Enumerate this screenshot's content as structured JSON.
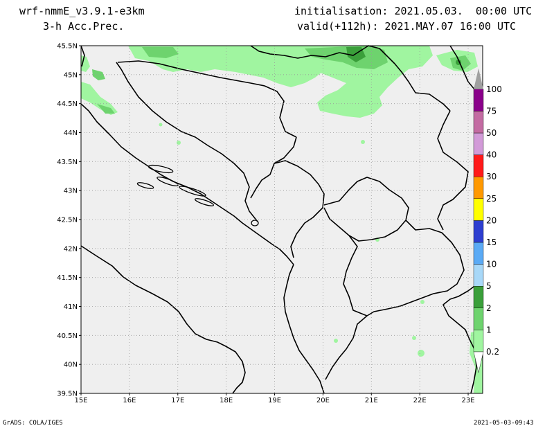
{
  "header": {
    "model": "wrf-nmmE_v3.9.1-e3km",
    "product": "3-h Acc.Prec.",
    "initialisation": "initialisation: 2021.05.03.  00:00 UTC",
    "valid": "valid(+112h): 2021.MAY.07 16:00 UTC"
  },
  "map": {
    "lat_labels": [
      "45.5N",
      "45N",
      "44.5N",
      "44N",
      "43.5N",
      "43N",
      "42.5N",
      "42N",
      "41.5N",
      "41N",
      "40.5N",
      "40N",
      "39.5N"
    ],
    "lon_labels": [
      "15E",
      "16E",
      "17E",
      "18E",
      "19E",
      "20E",
      "21E",
      "22E",
      "23E"
    ],
    "lat_range": [
      39.5,
      45.5
    ],
    "lon_range": [
      15,
      23.3
    ],
    "background_color": "#efefef",
    "coastline_color": "#000000",
    "gridlines": "dotted"
  },
  "colorbar": {
    "labels": [
      "0.2",
      "1",
      "2",
      "5",
      "10",
      "15",
      "20",
      "25",
      "30",
      "40",
      "50",
      "75",
      "100"
    ],
    "colors": [
      "#a0f5a0",
      "#6ed36e",
      "#3a9f3a",
      "#a8d8f8",
      "#5aaaf5",
      "#2d3ed0",
      "#ffff00",
      "#ff9900",
      "#ff1a1a",
      "#d29ad8",
      "#c36ba2",
      "#8a008a",
      "#a0a0a0"
    ]
  },
  "footer": {
    "credit": "GrADS: COLA/IGES",
    "timestamp": "2021-05-03-09:43"
  }
}
